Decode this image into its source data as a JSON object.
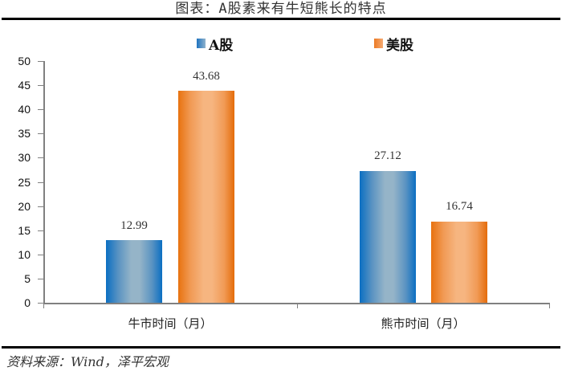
{
  "header": {
    "title": "图表：A股素来有牛短熊长的特点"
  },
  "footer": {
    "source": "资料来源：Wind，泽平宏观"
  },
  "colors": {
    "a_share": "#1f74c0",
    "us_share": "#ec7a24",
    "axis": "#808080"
  },
  "chart_data": {
    "type": "bar",
    "title": "图表：A股素来有牛短熊长的特点",
    "categories": [
      "牛市时间（月）",
      "熊市时间（月）"
    ],
    "series": [
      {
        "name": "A股",
        "values": [
          12.99,
          27.12
        ]
      },
      {
        "name": "美股",
        "values": [
          43.68,
          16.74
        ]
      }
    ],
    "xlabel": "",
    "ylabel": "",
    "ylim": [
      0,
      50
    ],
    "yticks": [
      0,
      5,
      10,
      15,
      20,
      25,
      30,
      35,
      40,
      45,
      50
    ],
    "grid": false,
    "legend_position": "top",
    "data_labels": [
      "12.99",
      "43.68",
      "27.12",
      "16.74"
    ]
  },
  "legend": [
    {
      "label": "A股"
    },
    {
      "label": "美股"
    }
  ],
  "labels": {
    "a_bull": "12.99",
    "u_bull": "43.68",
    "a_bear": "27.12",
    "u_bear": "16.74"
  },
  "yaxis": {
    "ticks": [
      "0",
      "5",
      "10",
      "15",
      "20",
      "25",
      "30",
      "35",
      "40",
      "45",
      "50"
    ]
  }
}
